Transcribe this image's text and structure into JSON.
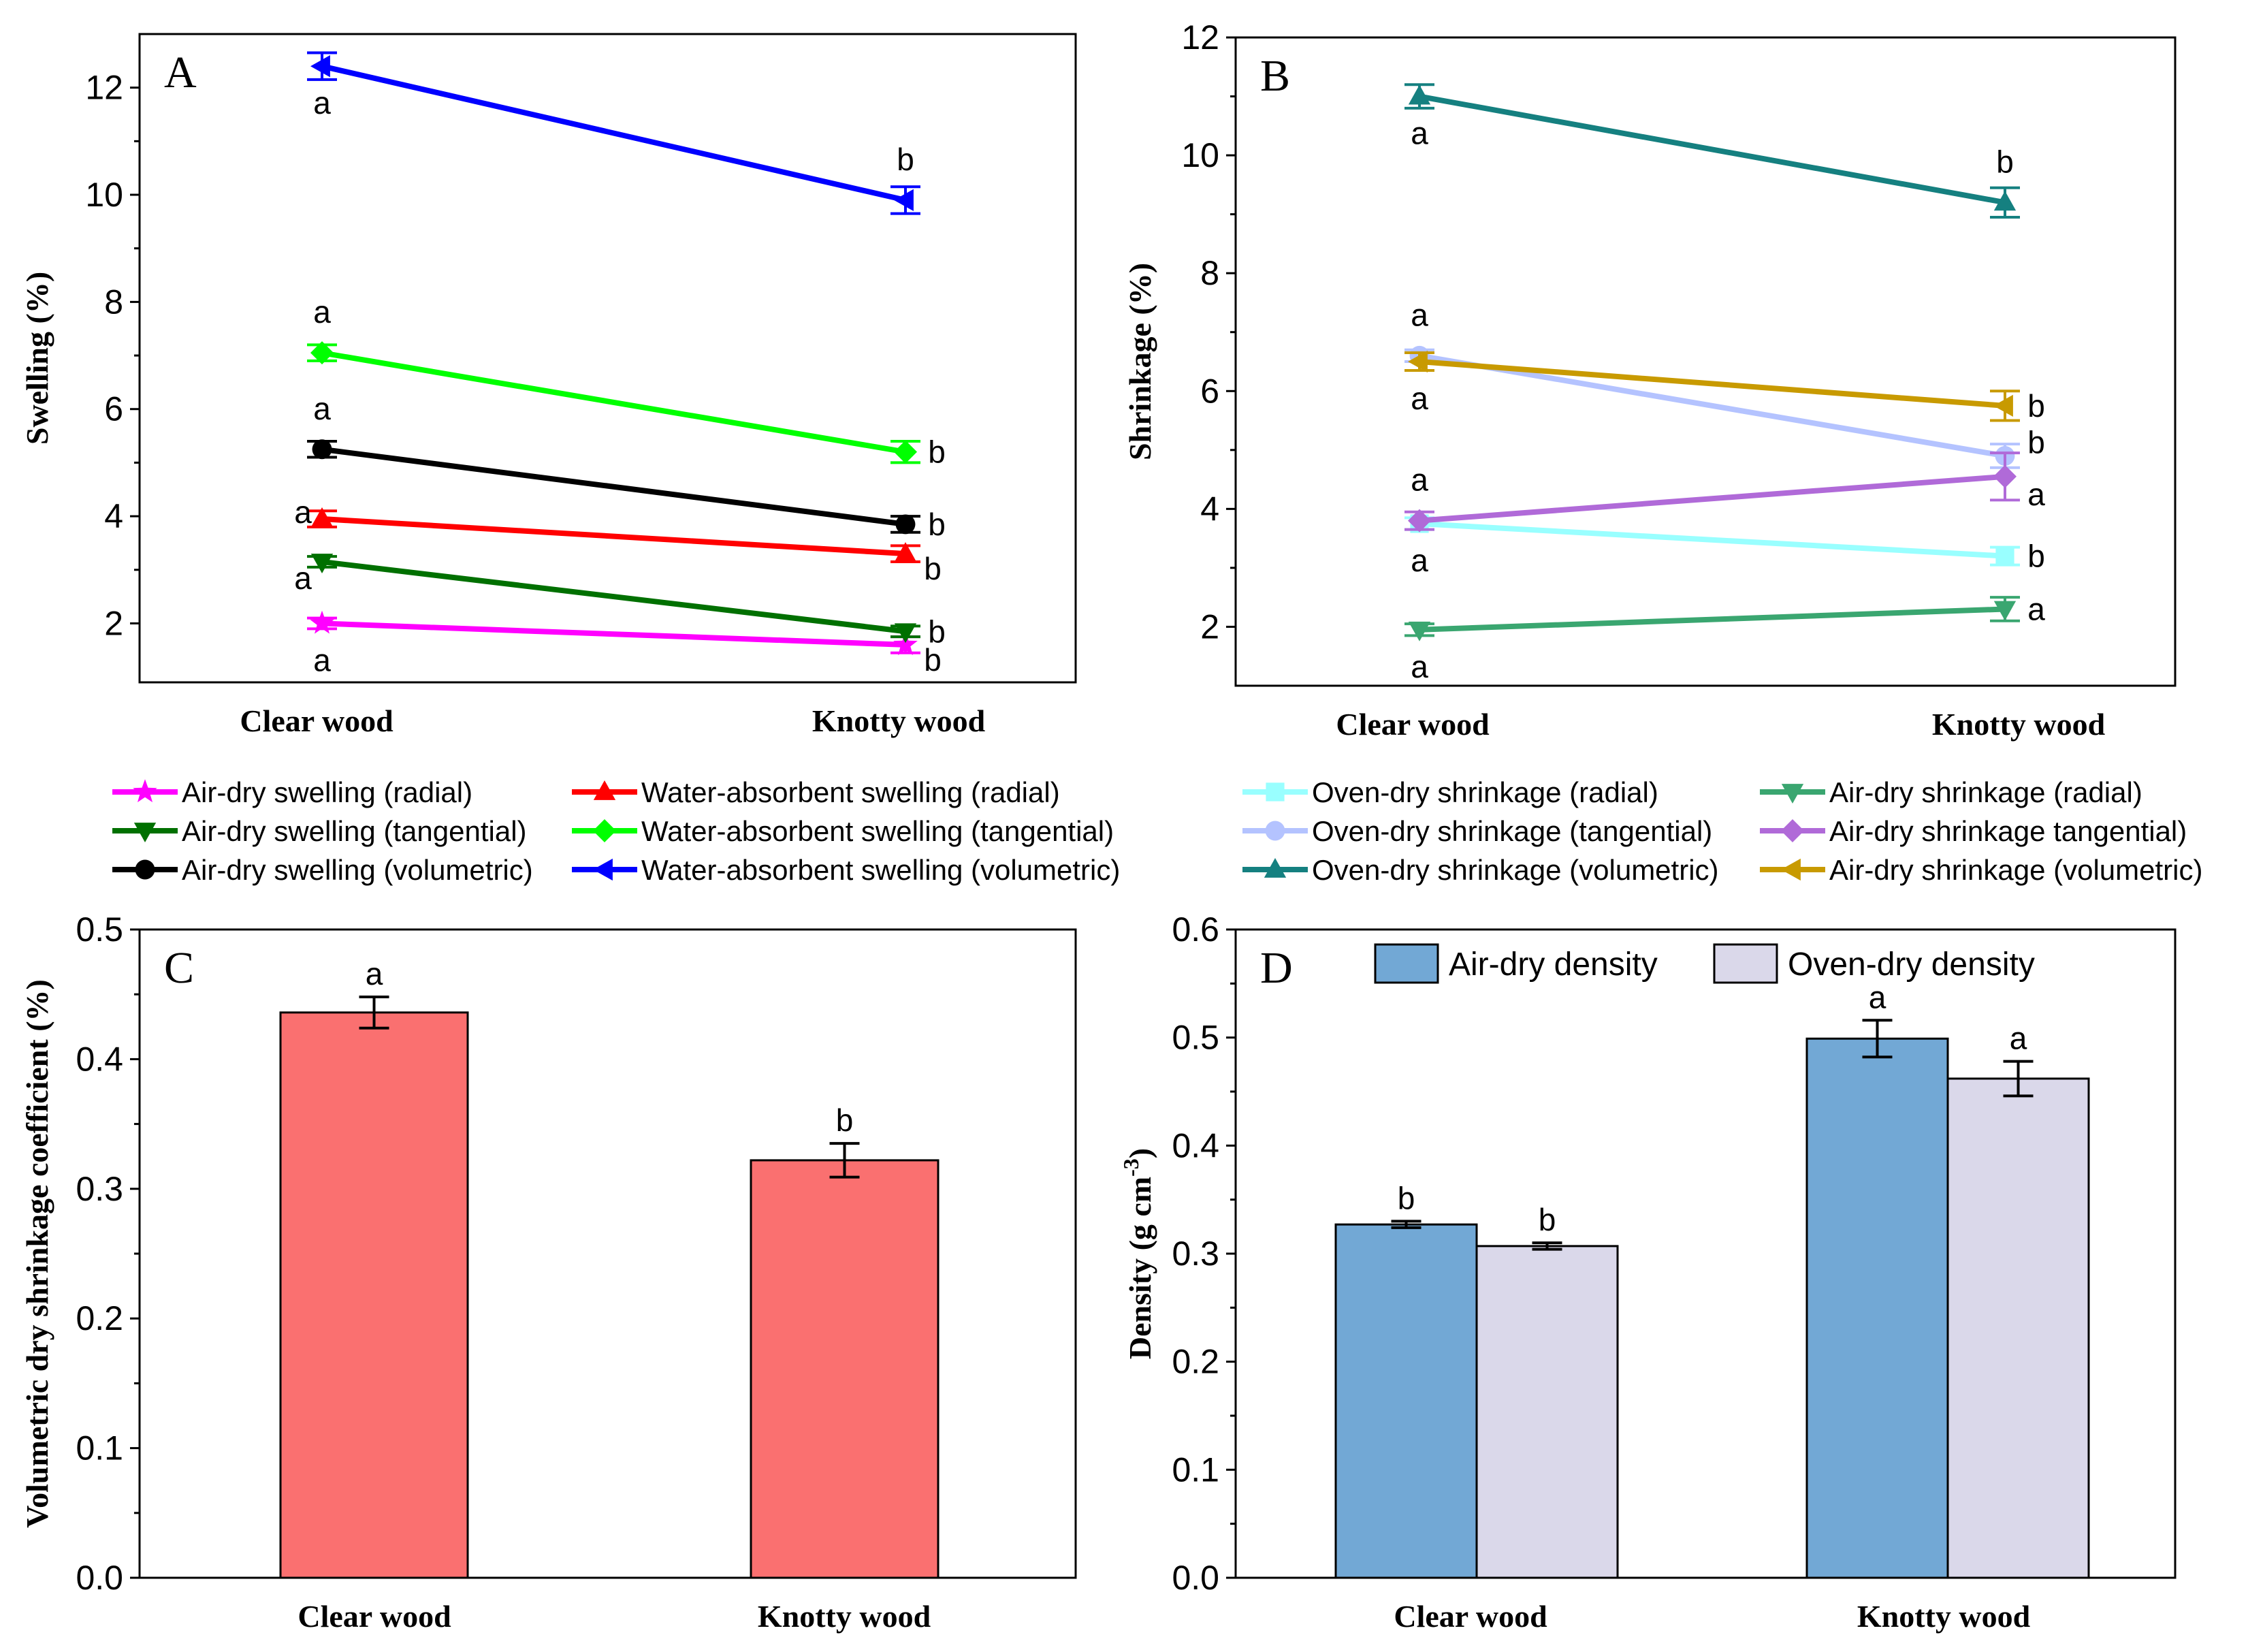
{
  "chart_data": [
    {
      "panel": "A",
      "type": "line",
      "categories": [
        "Clear wood",
        "Knotty wood"
      ],
      "ylabel": "Swelling (%)",
      "ylim": [
        0.9,
        13.0
      ],
      "yticks": [
        2,
        4,
        6,
        8,
        10,
        12
      ],
      "series": [
        {
          "name": "Air-dry swelling (radial)",
          "color": "#ff00ff",
          "marker": "star",
          "values": [
            2.0,
            1.6
          ],
          "errors": [
            0.1,
            0.15
          ],
          "letters": [
            "a",
            "b"
          ],
          "letter_pos": [
            "below",
            "below-right"
          ]
        },
        {
          "name": "Water-absorbent swelling (radial)",
          "color": "#ff0000",
          "marker": "triangle-up",
          "values": [
            3.95,
            3.3
          ],
          "errors": [
            0.15,
            0.15
          ],
          "letters": [
            "a",
            "b"
          ],
          "letter_pos": [
            "left",
            "below-right"
          ]
        },
        {
          "name": "Air-dry swelling (tangential)",
          "color": "#007000",
          "marker": "triangle-down",
          "values": [
            3.15,
            1.85
          ],
          "errors": [
            0.1,
            0.1
          ],
          "letters": [
            "a",
            "b"
          ],
          "letter_pos": [
            "left-low",
            "right"
          ]
        },
        {
          "name": "Water-absorbent swelling (tangential)",
          "color": "#00ff00",
          "marker": "diamond",
          "values": [
            7.05,
            5.2
          ],
          "errors": [
            0.15,
            0.2
          ],
          "letters": [
            "a",
            "b"
          ],
          "letter_pos": [
            "above",
            "right"
          ]
        },
        {
          "name": "Air-dry swelling (volumetric)",
          "color": "#000000",
          "marker": "circle",
          "values": [
            5.25,
            3.85
          ],
          "errors": [
            0.15,
            0.15
          ],
          "letters": [
            "a",
            "b"
          ],
          "letter_pos": [
            "above",
            "right"
          ]
        },
        {
          "name": "Water-absorbent swelling (volumetric)",
          "color": "#0000ff",
          "marker": "triangle-left",
          "values": [
            12.4,
            9.9
          ],
          "errors": [
            0.25,
            0.25
          ],
          "letters": [
            "a",
            "b"
          ],
          "letter_pos": [
            "below",
            "above"
          ]
        }
      ]
    },
    {
      "panel": "B",
      "type": "line",
      "categories": [
        "Clear wood",
        "Knotty wood"
      ],
      "ylabel": "Shrinkage (%)",
      "ylim": [
        1.0,
        12.0
      ],
      "yticks": [
        2,
        4,
        6,
        8,
        10,
        12
      ],
      "series": [
        {
          "name": "Oven-dry shrinkage (radial)",
          "color": "#99ffff",
          "marker": "square",
          "values": [
            3.75,
            3.2
          ],
          "errors": [
            0.1,
            0.15
          ],
          "letters": [
            "a",
            "b"
          ],
          "letter_pos": [
            "below",
            "right"
          ]
        },
        {
          "name": "Air-dry shrinkage (radial)",
          "color": "#3aa670",
          "marker": "triangle-down",
          "values": [
            1.95,
            2.3
          ],
          "errors": [
            0.1,
            0.2
          ],
          "letters": [
            "a",
            "a"
          ],
          "letter_pos": [
            "below",
            "right"
          ]
        },
        {
          "name": "Oven-dry shrinkage (tangential)",
          "color": "#b4c3ff",
          "marker": "circle",
          "values": [
            6.6,
            4.9
          ],
          "errors": [
            0.1,
            0.2
          ],
          "letters": [
            "a",
            "b"
          ],
          "letter_pos": [
            "above",
            "right-up"
          ]
        },
        {
          "name": "Air-dry shrinkage tangential)",
          "color": "#b06ad8",
          "marker": "diamond",
          "values": [
            3.8,
            4.55
          ],
          "errors": [
            0.15,
            0.4
          ],
          "letters": [
            "a",
            "a"
          ],
          "letter_pos": [
            "above",
            "right-low"
          ]
        },
        {
          "name": "Oven-dry shrinkage (volumetric)",
          "color": "#158080",
          "marker": "triangle-up",
          "values": [
            11.0,
            9.2
          ],
          "errors": [
            0.2,
            0.25
          ],
          "letters": [
            "a",
            "b"
          ],
          "letter_pos": [
            "below",
            "above"
          ]
        },
        {
          "name": "Air-dry shrinkage (volumetric)",
          "color": "#c89a00",
          "marker": "triangle-left",
          "values": [
            6.5,
            5.75
          ],
          "errors": [
            0.15,
            0.25
          ],
          "letters": [
            "a",
            "b"
          ],
          "letter_pos": [
            "below",
            "right"
          ]
        }
      ]
    },
    {
      "panel": "C",
      "type": "bar",
      "categories": [
        "Clear wood",
        "Knotty wood"
      ],
      "ylabel": "Volumetric dry shrinkage coefficient (%)",
      "ylim": [
        0.0,
        0.5
      ],
      "yticks": [
        "0.0",
        "0.1",
        "0.2",
        "0.3",
        "0.4",
        "0.5"
      ],
      "series": [
        {
          "name": "Volumetric dry shrinkage coefficient",
          "color": "#fa7070",
          "values": [
            0.436,
            0.322
          ],
          "errors": [
            0.012,
            0.013
          ],
          "letters": [
            "a",
            "b"
          ]
        }
      ]
    },
    {
      "panel": "D",
      "type": "bar",
      "categories": [
        "Clear wood",
        "Knotty wood"
      ],
      "ylabel": "Density (g cm",
      "ylabel_sup": "-3",
      "ylabel_end": ")",
      "ylim": [
        0.0,
        0.6
      ],
      "yticks": [
        "0.0",
        "0.1",
        "0.2",
        "0.3",
        "0.4",
        "0.5",
        "0.6"
      ],
      "series": [
        {
          "name": "Air-dry density",
          "color": "#72a8d5",
          "values": [
            0.327,
            0.499
          ],
          "errors": [
            0.003,
            0.017
          ],
          "letters": [
            "b",
            "a"
          ]
        },
        {
          "name": "Oven-dry density",
          "color": "#dad8ea",
          "values": [
            0.307,
            0.462
          ],
          "errors": [
            0.003,
            0.016
          ],
          "letters": [
            "b",
            "a"
          ]
        }
      ]
    }
  ]
}
